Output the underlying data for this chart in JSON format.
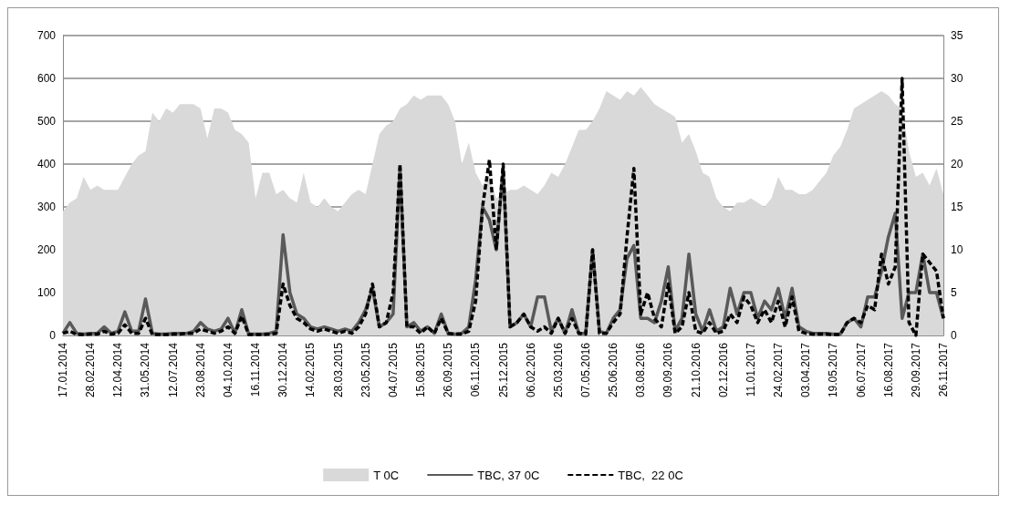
{
  "chart_data": {
    "type": "line",
    "categories": [
      "17.01.2014",
      null,
      null,
      null,
      "28.02.2014",
      null,
      null,
      null,
      "12.04.2014",
      null,
      null,
      null,
      "31.05.2014",
      null,
      null,
      null,
      "12.07.2014",
      null,
      null,
      null,
      "23.08.2014",
      null,
      null,
      null,
      "04.10.2014",
      null,
      null,
      null,
      "16.11.2014",
      null,
      null,
      null,
      "30.12.2014",
      null,
      null,
      null,
      "14.02.2015",
      null,
      null,
      null,
      "28.03.2015",
      null,
      null,
      null,
      "23.05.2015",
      null,
      null,
      null,
      "04.07.2015",
      null,
      null,
      null,
      "15.08.2015",
      null,
      null,
      null,
      "26.09.2015",
      null,
      null,
      null,
      "06.11.2015",
      null,
      null,
      null,
      "25.12.2015",
      null,
      null,
      null,
      "06.02.2016",
      null,
      null,
      null,
      "25.03.2016",
      null,
      null,
      null,
      "07.05.2016",
      null,
      null,
      null,
      "25.06.2016",
      null,
      null,
      null,
      "03.08.2016",
      null,
      null,
      null,
      "09.09.2016",
      null,
      null,
      null,
      "21.10.2016",
      null,
      null,
      null,
      "02.12.2016",
      null,
      null,
      null,
      "11.01.2017",
      null,
      null,
      null,
      "24.02.2017",
      null,
      null,
      null,
      "03.04.2017",
      null,
      null,
      null,
      "19.05.2017",
      null,
      null,
      null,
      "06.07.2017",
      null,
      null,
      null,
      "16.08.2017",
      null,
      null,
      null,
      "29.09.2017",
      null,
      null,
      null,
      "26.11.2017"
    ],
    "series": [
      {
        "name": "T 0C",
        "type": "area",
        "axis": "y2",
        "color": "#d9d9d9",
        "values": [
          14.5,
          15.5,
          16,
          18.5,
          17,
          17.5,
          17,
          17,
          17,
          18.5,
          20,
          21,
          21.5,
          26,
          25,
          26.5,
          26,
          27,
          27,
          27,
          26.5,
          23,
          26.5,
          26.5,
          26,
          24,
          23.5,
          22.5,
          16,
          19,
          19,
          16.5,
          17,
          16,
          15.5,
          19,
          15.5,
          15,
          16,
          15,
          14.5,
          15.5,
          16.5,
          17,
          16.5,
          20,
          23.5,
          24.5,
          25,
          26.5,
          27,
          28,
          27.5,
          28,
          28,
          28,
          27,
          25,
          20,
          22.5,
          19,
          17.5,
          18.5,
          16,
          16.5,
          17,
          17,
          17.5,
          17,
          16.5,
          17.5,
          19,
          18.5,
          20,
          22,
          24,
          24,
          25,
          26.5,
          28.5,
          28,
          27.5,
          28.5,
          28,
          29,
          28,
          27,
          26.5,
          26,
          25.5,
          22.5,
          23.5,
          21.5,
          19,
          18.5,
          16,
          15,
          14.5,
          15.5,
          15.5,
          16,
          15.5,
          15,
          16,
          18.5,
          17,
          17,
          16.5,
          16.5,
          17,
          18,
          19,
          21,
          22,
          24,
          26.5,
          27,
          27.5,
          28,
          28.5,
          28,
          27,
          26.5,
          21.5,
          18.5,
          19,
          17.5,
          19.5,
          16.5
        ]
      },
      {
        "name": "TBC, 37 0C",
        "color": "#595959",
        "line_style": "solid",
        "values": [
          5,
          30,
          5,
          3,
          5,
          5,
          20,
          5,
          10,
          55,
          10,
          10,
          85,
          5,
          3,
          3,
          5,
          5,
          5,
          10,
          30,
          15,
          10,
          15,
          40,
          5,
          60,
          3,
          3,
          3,
          5,
          10,
          235,
          100,
          50,
          40,
          20,
          15,
          20,
          15,
          10,
          15,
          10,
          30,
          60,
          110,
          20,
          30,
          50,
          390,
          20,
          30,
          10,
          20,
          5,
          50,
          5,
          3,
          5,
          20,
          130,
          300,
          270,
          200,
          390,
          20,
          30,
          50,
          20,
          90,
          90,
          10,
          40,
          5,
          60,
          5,
          5,
          200,
          10,
          5,
          40,
          60,
          180,
          210,
          40,
          40,
          30,
          80,
          160,
          10,
          40,
          190,
          50,
          10,
          60,
          10,
          20,
          110,
          50,
          100,
          100,
          40,
          80,
          60,
          110,
          40,
          110,
          20,
          10,
          5,
          5,
          5,
          3,
          3,
          30,
          40,
          20,
          90,
          90,
          150,
          230,
          285,
          40,
          100,
          100,
          190,
          100,
          100,
          40
        ]
      },
      {
        "name": "TBC,  22 0C",
        "color": "#000000",
        "line_style": "dashed",
        "values": [
          5,
          10,
          2,
          2,
          3,
          3,
          10,
          3,
          5,
          25,
          5,
          5,
          40,
          2,
          2,
          2,
          3,
          3,
          5,
          5,
          15,
          10,
          5,
          10,
          20,
          5,
          45,
          2,
          2,
          2,
          3,
          5,
          120,
          70,
          40,
          30,
          15,
          10,
          15,
          10,
          5,
          10,
          5,
          20,
          50,
          120,
          20,
          30,
          100,
          400,
          20,
          20,
          5,
          20,
          5,
          40,
          5,
          3,
          3,
          10,
          80,
          300,
          410,
          200,
          400,
          20,
          30,
          50,
          20,
          10,
          20,
          5,
          40,
          5,
          40,
          5,
          3,
          200,
          5,
          5,
          30,
          50,
          230,
          390,
          50,
          100,
          40,
          20,
          120,
          5,
          20,
          100,
          10,
          5,
          30,
          5,
          10,
          50,
          30,
          90,
          70,
          30,
          60,
          30,
          80,
          20,
          90,
          10,
          5,
          3,
          3,
          3,
          2,
          2,
          30,
          40,
          30,
          70,
          60,
          190,
          120,
          160,
          600,
          30,
          0,
          190,
          170,
          150,
          40
        ]
      }
    ],
    "ylim": [
      0,
      700
    ],
    "yticks": [
      0,
      100,
      200,
      300,
      400,
      500,
      600,
      700
    ],
    "y2lim": [
      0,
      35
    ],
    "y2ticks": [
      0,
      5,
      10,
      15,
      20,
      25,
      30,
      35
    ],
    "grid": "y",
    "legend": "bottom",
    "marker": "none"
  }
}
